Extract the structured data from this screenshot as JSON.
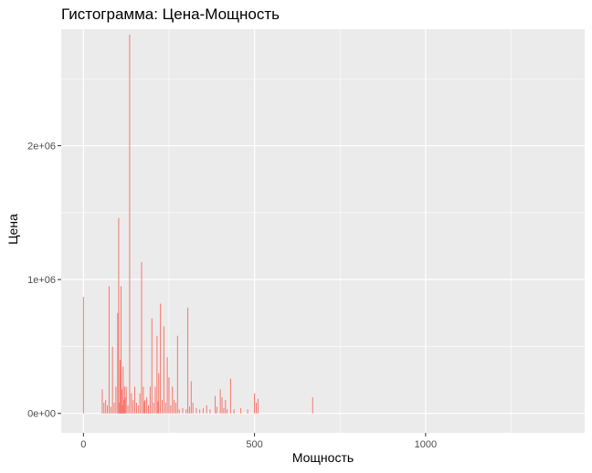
{
  "chart_data": {
    "type": "bar",
    "title": "Гистограмма: Цена-Мощность",
    "xlabel": "Мощность",
    "ylabel": "Цена",
    "xlim": [
      -65,
      1465
    ],
    "ylim": [
      -145000,
      2870000
    ],
    "x_ticks": [
      {
        "value": 0,
        "label": "0"
      },
      {
        "value": 500,
        "label": "500"
      },
      {
        "value": 1000,
        "label": "1000"
      }
    ],
    "y_ticks": [
      {
        "value": 0,
        "label": "0e+00"
      },
      {
        "value": 1000000,
        "label": "1e+06"
      },
      {
        "value": 2000000,
        "label": "2e+06"
      }
    ],
    "grid": true,
    "legend": "none",
    "bar_color": "#f8766d",
    "panel_background": "#ebebeb",
    "grid_color": "#ffffff",
    "series": [
      {
        "x": [
          0,
          55,
          60,
          65,
          70,
          75,
          80,
          85,
          90,
          95,
          100,
          103,
          105,
          107,
          109,
          110,
          112,
          114,
          116,
          118,
          120,
          122,
          125,
          130,
          135,
          140,
          145,
          150,
          155,
          160,
          165,
          170,
          175,
          178,
          180,
          185,
          190,
          195,
          200,
          205,
          210,
          215,
          218,
          220,
          225,
          230,
          235,
          240,
          245,
          250,
          255,
          260,
          265,
          270,
          275,
          280,
          290,
          300,
          305,
          310,
          315,
          320,
          330,
          340,
          350,
          360,
          370,
          385,
          390,
          400,
          405,
          410,
          415,
          420,
          430,
          440,
          460,
          480,
          500,
          505,
          510,
          670
        ],
        "y": [
          870000,
          180000,
          80000,
          100000,
          60000,
          950000,
          50000,
          500000,
          80000,
          200000,
          750000,
          1460000,
          80000,
          400000,
          300000,
          950000,
          180000,
          60000,
          350000,
          100000,
          200000,
          120000,
          200000,
          60000,
          2830000,
          150000,
          100000,
          200000,
          80000,
          60000,
          150000,
          1130000,
          200000,
          90000,
          100000,
          120000,
          60000,
          200000,
          710000,
          80000,
          200000,
          580000,
          90000,
          300000,
          820000,
          100000,
          650000,
          80000,
          420000,
          270000,
          60000,
          200000,
          100000,
          80000,
          580000,
          30000,
          40000,
          30000,
          790000,
          50000,
          240000,
          80000,
          40000,
          30000,
          40000,
          60000,
          30000,
          130000,
          50000,
          180000,
          120000,
          40000,
          100000,
          30000,
          260000,
          30000,
          40000,
          30000,
          150000,
          80000,
          110000,
          120000
        ]
      }
    ]
  }
}
